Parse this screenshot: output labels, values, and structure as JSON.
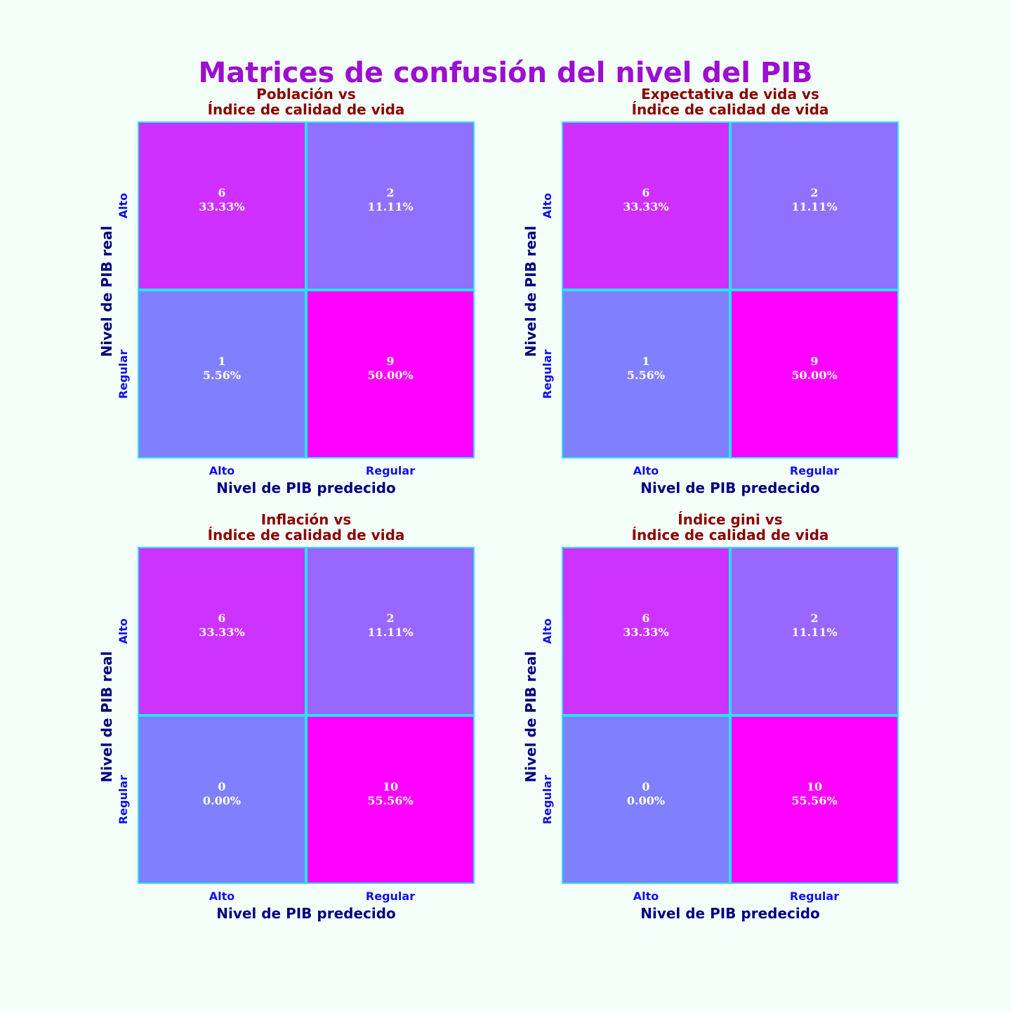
{
  "title": "Matrices de confusión del nivel del PIB",
  "colors": {
    "background": "#f5fffa",
    "grid_line": "#22e6f0",
    "low": "#8080ff",
    "high": "#ff00ff"
  },
  "chart_data": [
    {
      "type": "heatmap",
      "title": [
        "Población vs",
        "Índice de calidad de vida"
      ],
      "xlabel": "Nivel de PIB predecido",
      "ylabel": "Nivel de PIB real",
      "xticks": [
        "Alto",
        "Regular"
      ],
      "yticks": [
        "Alto",
        "Regular"
      ],
      "counts": [
        [
          6,
          2
        ],
        [
          1,
          9
        ]
      ],
      "percents": [
        [
          "33.33%",
          "11.11%"
        ],
        [
          "5.56%",
          "50.00%"
        ]
      ]
    },
    {
      "type": "heatmap",
      "title": [
        "Expectativa de vida vs",
        "Índice de calidad de vida"
      ],
      "xlabel": "Nivel de PIB predecido",
      "ylabel": "Nivel de PIB real",
      "xticks": [
        "Alto",
        "Regular"
      ],
      "yticks": [
        "Alto",
        "Regular"
      ],
      "counts": [
        [
          6,
          2
        ],
        [
          1,
          9
        ]
      ],
      "percents": [
        [
          "33.33%",
          "11.11%"
        ],
        [
          "5.56%",
          "50.00%"
        ]
      ]
    },
    {
      "type": "heatmap",
      "title": [
        "Inflación vs",
        "Índice de calidad de vida"
      ],
      "xlabel": "Nivel de PIB predecido",
      "ylabel": "Nivel de PIB real",
      "xticks": [
        "Alto",
        "Regular"
      ],
      "yticks": [
        "Alto",
        "Regular"
      ],
      "counts": [
        [
          6,
          2
        ],
        [
          0,
          10
        ]
      ],
      "percents": [
        [
          "33.33%",
          "11.11%"
        ],
        [
          "0.00%",
          "55.56%"
        ]
      ]
    },
    {
      "type": "heatmap",
      "title": [
        "Índice gini vs",
        "Índice de calidad de vida"
      ],
      "xlabel": "Nivel de PIB predecido",
      "ylabel": "Nivel de PIB real",
      "xticks": [
        "Alto",
        "Regular"
      ],
      "yticks": [
        "Alto",
        "Regular"
      ],
      "counts": [
        [
          6,
          2
        ],
        [
          0,
          10
        ]
      ],
      "percents": [
        [
          "33.33%",
          "11.11%"
        ],
        [
          "0.00%",
          "55.56%"
        ]
      ]
    }
  ]
}
